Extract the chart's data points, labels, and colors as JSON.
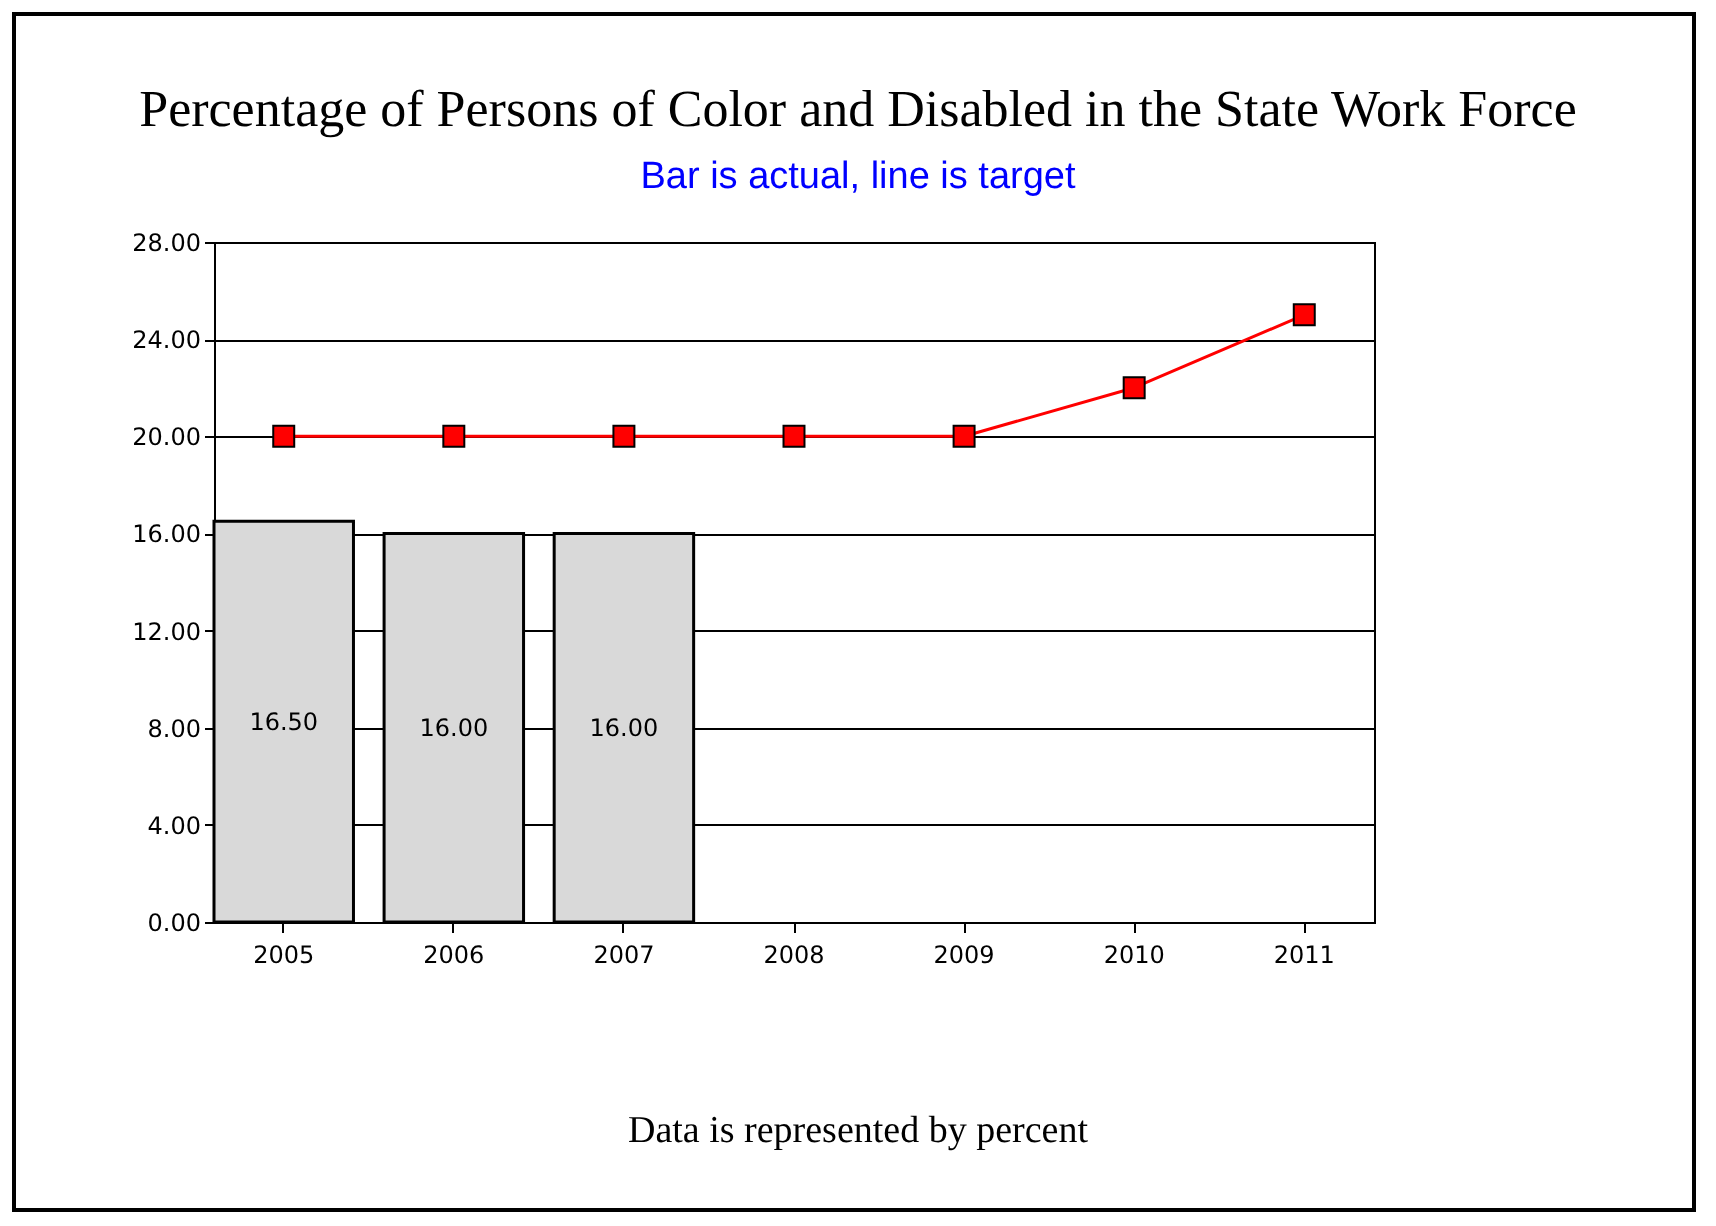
{
  "chart_data": {
    "type": "bar",
    "title": "Percentage of Persons of Color and Disabled in the State Work Force",
    "subtitle": "Bar is actual, line is target",
    "categories": [
      "2005",
      "2006",
      "2007",
      "2008",
      "2009",
      "2010",
      "2011"
    ],
    "series": [
      {
        "color": "#d9d9d9",
        "values": [
          16.5,
          16,
          16,
          null,
          null,
          null,
          null
        ],
        "value_labels": [
          "16.50",
          "16.00",
          "16.00",
          null,
          null,
          null,
          null
        ]
      },
      {
        "type": "line",
        "color": "#ff0000",
        "marker": "square",
        "values": [
          20,
          20,
          20,
          20,
          20,
          22,
          25
        ]
      }
    ],
    "ylim": [
      0,
      28
    ],
    "yticks": [
      {
        "value": 0,
        "label": "0.00"
      },
      {
        "value": 4,
        "label": "4.00"
      },
      {
        "value": 8,
        "label": "8.00"
      },
      {
        "value": 12,
        "label": "12.00"
      },
      {
        "value": 16,
        "label": "16.00"
      },
      {
        "value": 20,
        "label": "20.00"
      },
      {
        "value": 24,
        "label": "24.00"
      },
      {
        "value": 28,
        "label": "28.00"
      }
    ],
    "grid": "y",
    "annotations": [
      "Data is represented by percent"
    ]
  }
}
